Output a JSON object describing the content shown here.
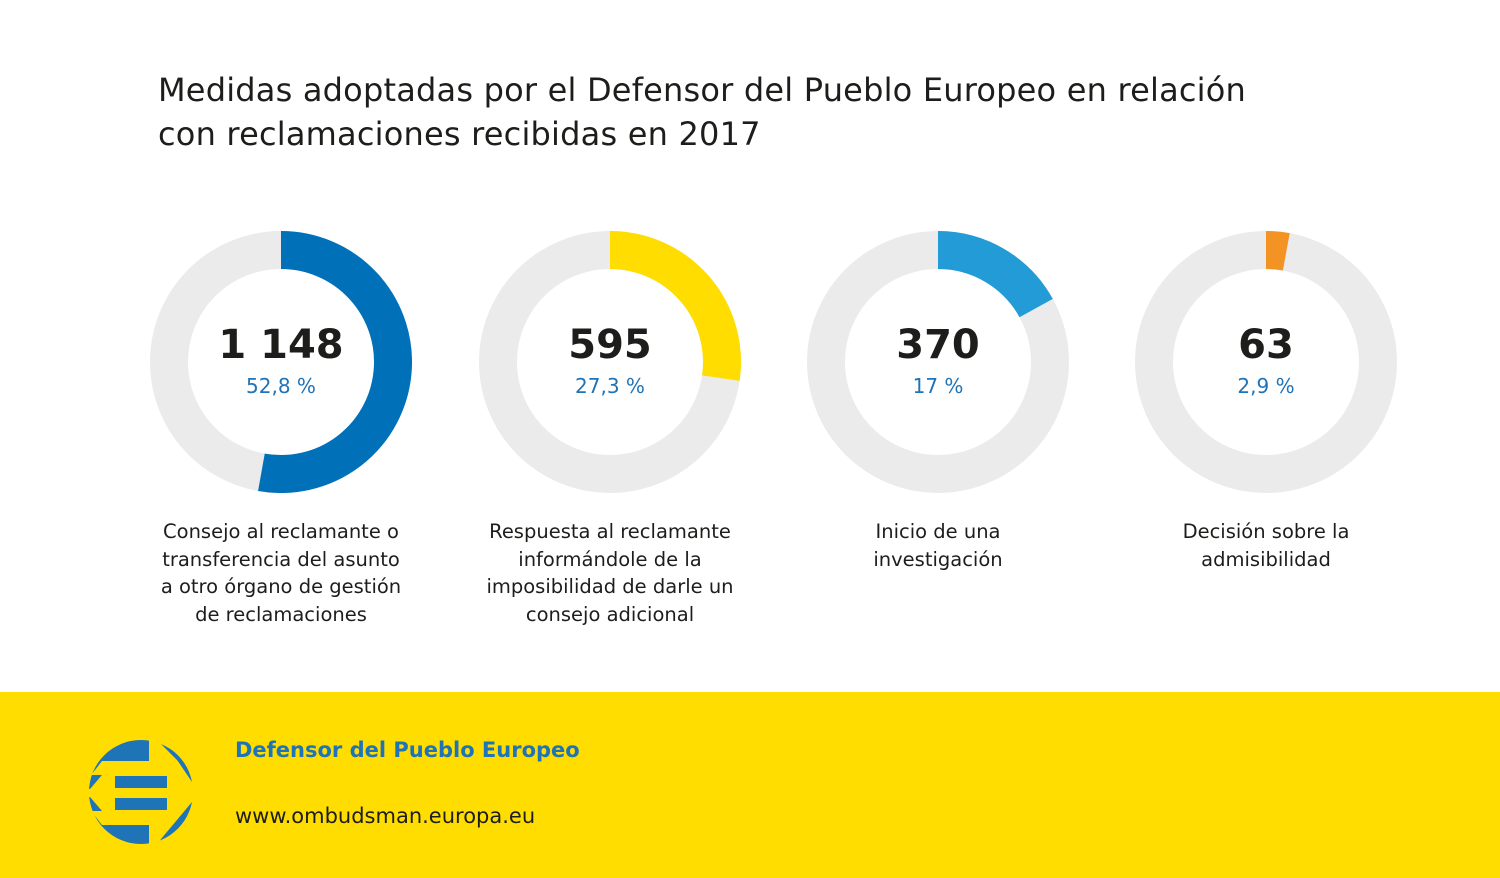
{
  "chart_data": {
    "type": "pie",
    "subtype": "donut",
    "title": "Medidas adoptadas por el Defensor del Pueblo Europeo en relación con reclamaciones recibidas en 2017",
    "title_lines": [
      "Medidas adoptadas por el Defensor del Pueblo Europeo en relación",
      "con reclamaciones recibidas en 2017"
    ],
    "track_color": "#ebebeb",
    "items": [
      {
        "count": "1 148",
        "value": 1148,
        "percent": 52.8,
        "percent_label": "52,8 %",
        "color": "#0070b8",
        "label_lines": [
          "Consejo al reclamante o",
          "transferencia del asunto",
          "a otro órgano de gestión",
          "de reclamaciones"
        ]
      },
      {
        "count": "595",
        "value": 595,
        "percent": 27.3,
        "percent_label": "27,3 %",
        "color": "#ffdd00",
        "label_lines": [
          "Respuesta al reclamante",
          "informándole de la",
          "imposibilidad de darle un",
          "consejo adicional"
        ]
      },
      {
        "count": "370",
        "value": 370,
        "percent": 17,
        "percent_label": "17 %",
        "color": "#229bd6",
        "label_lines": [
          "Inicio de una",
          "investigación"
        ]
      },
      {
        "count": "63",
        "value": 63,
        "percent": 2.9,
        "percent_label": "2,9 %",
        "color": "#f39323",
        "label_lines": [
          "Decisión sobre la",
          "admisibilidad"
        ]
      }
    ]
  },
  "footer": {
    "organization": "Defensor del Pueblo Europeo",
    "url": "www.ombudsman.europa.eu",
    "logo_icon": "european-ombudsman-logo",
    "background_color": "#ffdd00",
    "logo_color": "#1f73b7"
  }
}
